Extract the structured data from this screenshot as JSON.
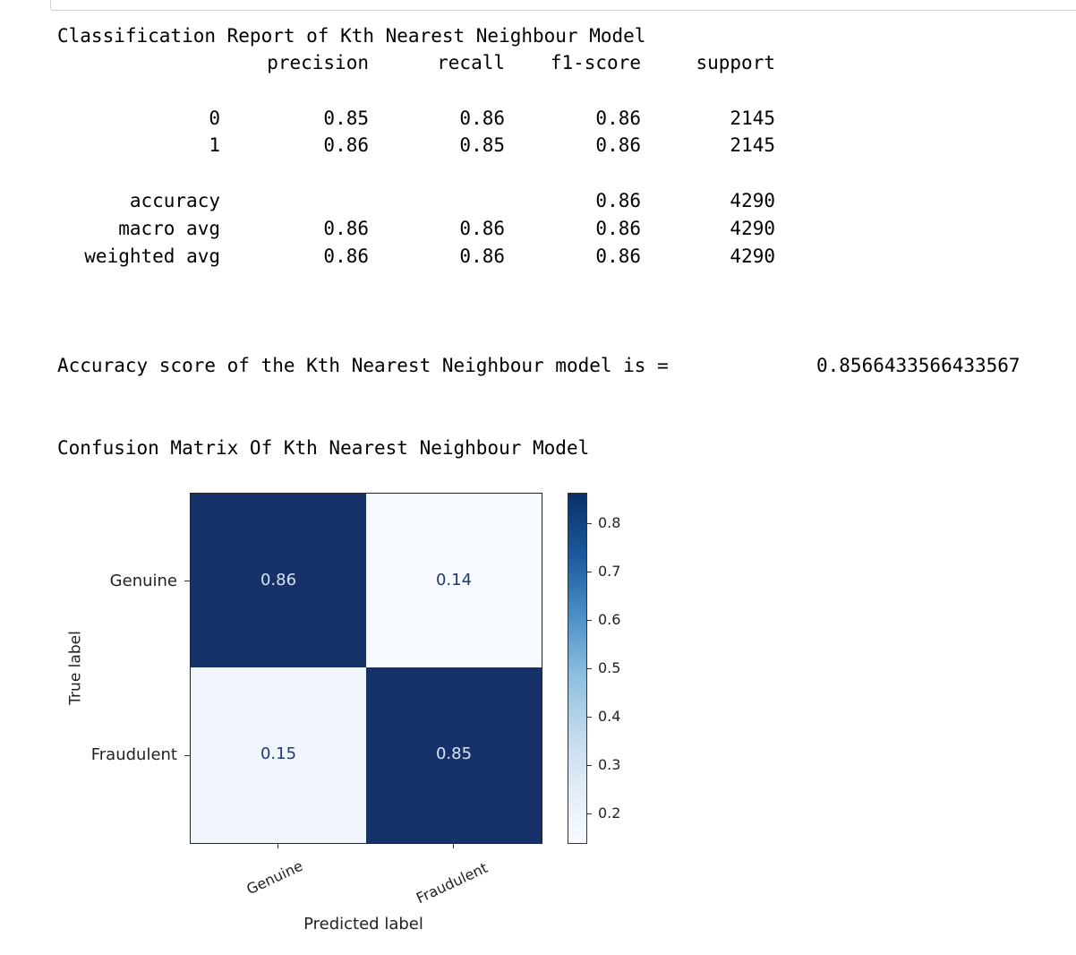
{
  "report": {
    "title": "Classification Report of Kth Nearest Neighbour Model",
    "headers": [
      "precision",
      "recall",
      "f1-score",
      "support"
    ],
    "rows": [
      {
        "label": "0",
        "precision": "0.85",
        "recall": "0.86",
        "f1": "0.86",
        "support": "2145"
      },
      {
        "label": "1",
        "precision": "0.86",
        "recall": "0.85",
        "f1": "0.86",
        "support": "2145"
      }
    ],
    "summary": [
      {
        "label": "accuracy",
        "precision": "",
        "recall": "",
        "f1": "0.86",
        "support": "4290"
      },
      {
        "label": "macro avg",
        "precision": "0.86",
        "recall": "0.86",
        "f1": "0.86",
        "support": "4290"
      },
      {
        "label": "weighted avg",
        "precision": "0.86",
        "recall": "0.86",
        "f1": "0.86",
        "support": "4290"
      }
    ]
  },
  "accuracy_line": {
    "text": "Accuracy score of the Kth Nearest Neighbour model is =",
    "value": "0.8566433566433567"
  },
  "confusion_title": "Confusion Matrix Of Kth Nearest Neighbour Model",
  "matrix": {
    "ylabel": "True label",
    "xlabel": "Predicted label",
    "row_labels": [
      "Genuine",
      "Fraudulent"
    ],
    "col_labels": [
      "Genuine",
      "Fraudulent"
    ],
    "values": [
      [
        "0.86",
        "0.14"
      ],
      [
        "0.15",
        "0.85"
      ]
    ],
    "colors": {
      "dark": "#17326b",
      "light": "#f6f9ff",
      "light_alt": "#f0f5fc",
      "dark_text": "#d9e3f5",
      "light_text": "#1f3b6e"
    },
    "colorbar_ticks": [
      "0.8",
      "0.7",
      "0.6",
      "0.5",
      "0.4",
      "0.3",
      "0.2"
    ],
    "colormap": "Blues"
  }
}
